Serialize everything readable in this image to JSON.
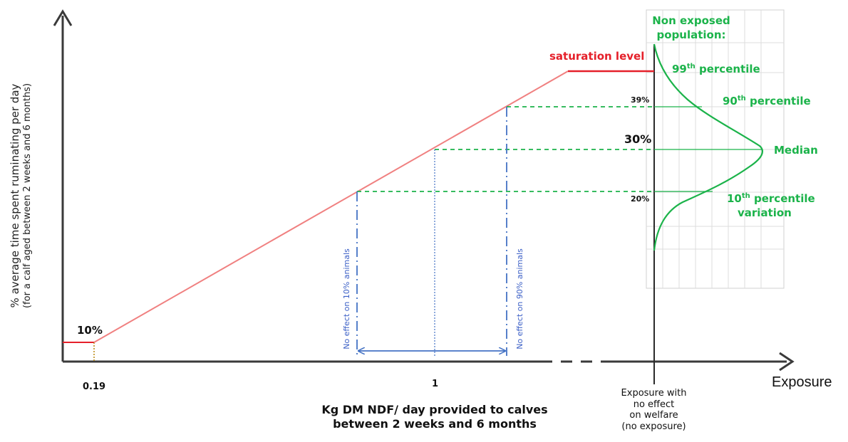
{
  "y_axis": {
    "title_line1": "% average time spent ruminating per day",
    "title_line2": "(for a calf aged between 2 weeks and 6 months)"
  },
  "x_axis": {
    "title_line1": "Kg DM NDF/ day provided to calves",
    "title_line2": "between 2 weeks and 6 months",
    "tick_low": "0.19",
    "tick_mid": "1",
    "end_label": "Exposure"
  },
  "no_effect_label": {
    "line1": "Exposure with",
    "line2": "no effect",
    "line3": "on welfare",
    "line4": "(no exposure)"
  },
  "curve_labels": {
    "baseline": "10%",
    "saturation": "saturation level"
  },
  "levels": {
    "p90": "39%",
    "median": "30%",
    "p10": "20%"
  },
  "population": {
    "title_line1": "Non exposed",
    "title_line2": "population:",
    "p99_num": "99",
    "p99_sup": "th",
    "p99_text": " percentile",
    "p90_num": "90",
    "p90_sup": "th",
    "p90_text": " percentile",
    "median": "Median",
    "p10_num": "10",
    "p10_sup": "th",
    "p10_text": " percentile",
    "variation": "variation"
  },
  "vertical_labels": {
    "left": "No effect on 10% animals",
    "right": "No effect on 90% animals"
  },
  "colors": {
    "axis": "#3a3a3a",
    "response_line": "#f08080",
    "saturation": "#e5202a",
    "population": "#1bb34a",
    "exposure_markers": "#4472c4",
    "grid": "#d8d8d8"
  }
}
